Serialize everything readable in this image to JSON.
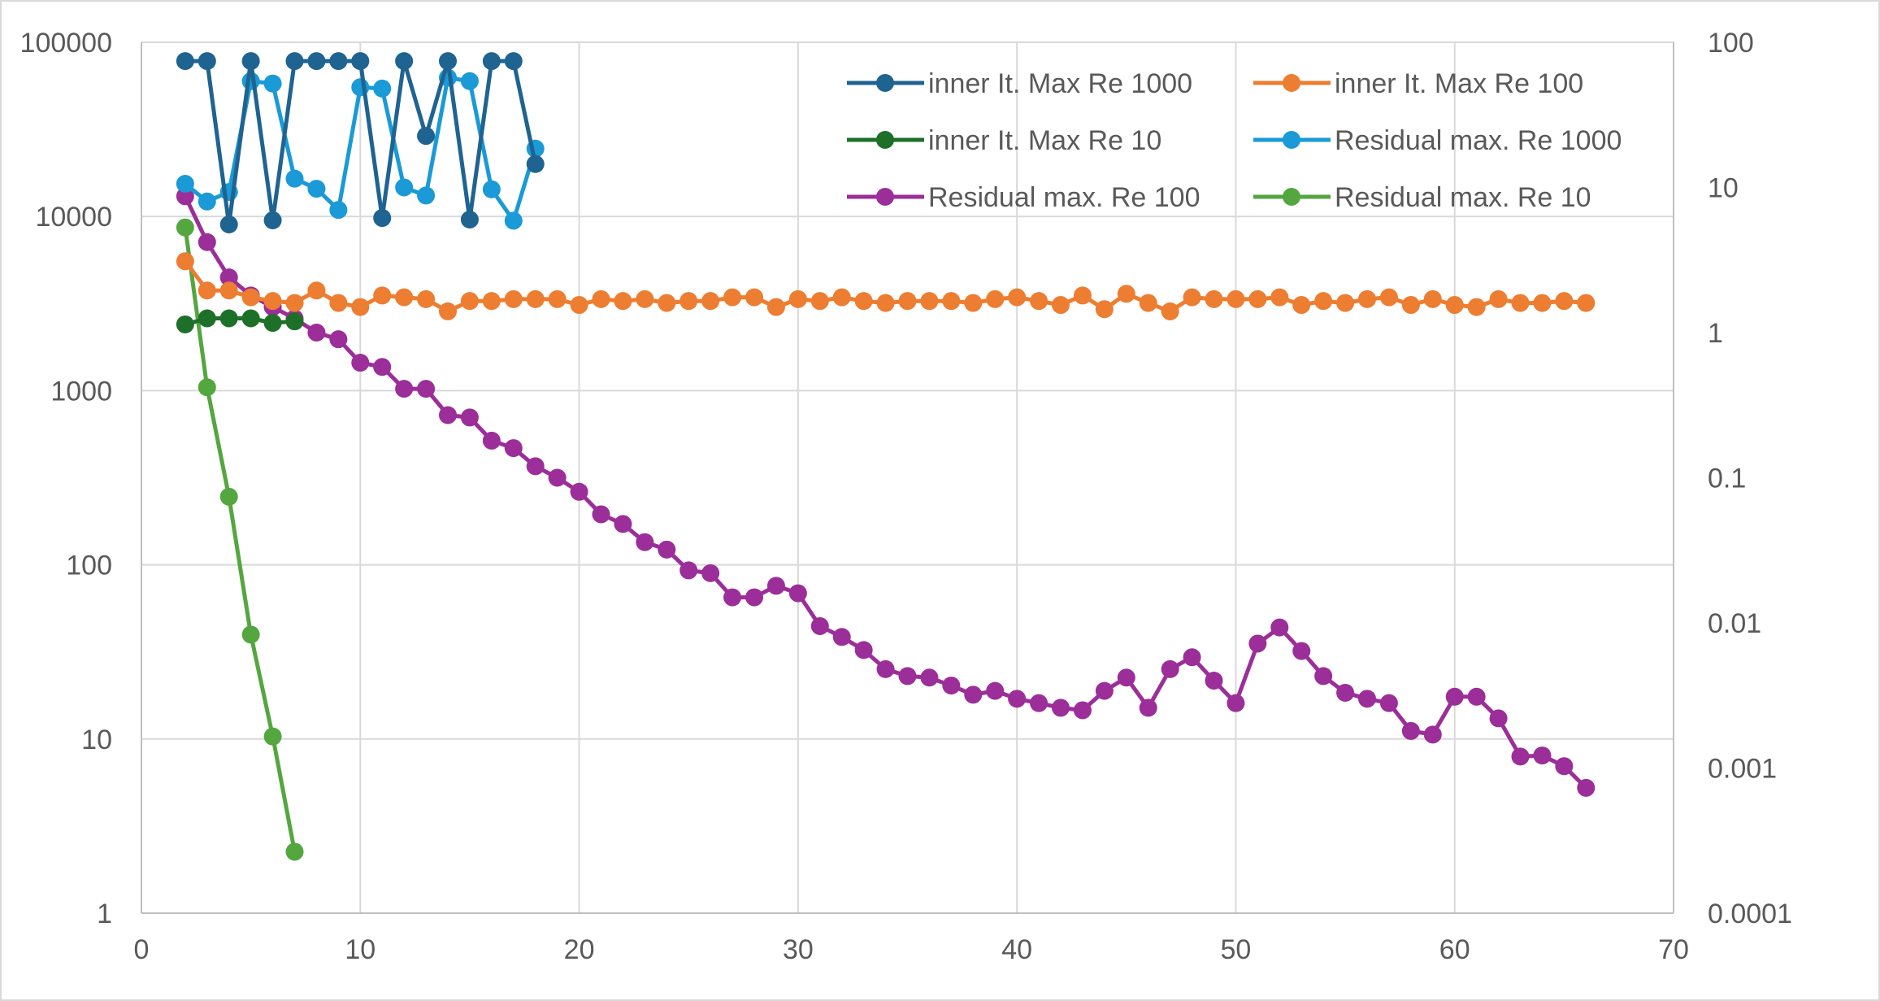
{
  "chart_data": {
    "type": "line",
    "title": "",
    "xlabel": "",
    "ylabel": "",
    "y2label": "",
    "x_axis": {
      "min": 0,
      "max": 70,
      "ticks": [
        0,
        10,
        20,
        30,
        40,
        50,
        60,
        70
      ]
    },
    "y_axis_left": {
      "scale": "log",
      "min": 1,
      "max": 100000,
      "ticks": [
        1,
        10,
        100,
        1000,
        10000,
        100000
      ],
      "tick_labels": [
        "1",
        "10",
        "100",
        "1000",
        "10000",
        "100000"
      ]
    },
    "y_axis_right": {
      "scale": "log",
      "min": 0.0001,
      "max": 100,
      "ticks": [
        0.0001,
        0.001,
        0.01,
        0.1,
        1,
        10,
        100
      ],
      "tick_labels": [
        "0.0001",
        "0.001",
        "0.01",
        "0.1",
        "1",
        "10",
        "100"
      ]
    },
    "grid": true,
    "legend_position": "top-right",
    "series": [
      {
        "name": "inner It. Max Re 1000",
        "axis": "left",
        "color": "#1f6391",
        "x": [
          2,
          3,
          4,
          5,
          6,
          7,
          8,
          9,
          10,
          11,
          12,
          13,
          14,
          15,
          16,
          17,
          18
        ],
        "values": [
          78000,
          78000,
          9000,
          78000,
          9500,
          78000,
          78000,
          78000,
          78000,
          9800,
          78000,
          29000,
          78000,
          9600,
          78000,
          78000,
          20000
        ]
      },
      {
        "name": "inner It. Max Re 100",
        "axis": "right",
        "color": "#ed7d31",
        "x": [
          2,
          3,
          4,
          5,
          6,
          7,
          8,
          9,
          10,
          11,
          12,
          13,
          14,
          15,
          16,
          17,
          18,
          19,
          20,
          21,
          22,
          23,
          24,
          25,
          26,
          27,
          28,
          29,
          30,
          31,
          32,
          33,
          34,
          35,
          36,
          37,
          38,
          39,
          40,
          41,
          42,
          43,
          44,
          45,
          46,
          47,
          48,
          49,
          50,
          51,
          52,
          53,
          54,
          55,
          56,
          57,
          58,
          59,
          60,
          61,
          62,
          63,
          64,
          65,
          66
        ],
        "values": [
          3.1,
          1.95,
          1.95,
          1.75,
          1.65,
          1.6,
          1.95,
          1.6,
          1.5,
          1.8,
          1.75,
          1.7,
          1.4,
          1.65,
          1.65,
          1.7,
          1.7,
          1.7,
          1.55,
          1.7,
          1.65,
          1.7,
          1.6,
          1.65,
          1.65,
          1.75,
          1.75,
          1.5,
          1.7,
          1.65,
          1.75,
          1.65,
          1.6,
          1.65,
          1.65,
          1.65,
          1.6,
          1.7,
          1.75,
          1.65,
          1.55,
          1.8,
          1.45,
          1.85,
          1.6,
          1.4,
          1.75,
          1.7,
          1.7,
          1.7,
          1.75,
          1.55,
          1.65,
          1.6,
          1.7,
          1.75,
          1.55,
          1.7,
          1.55,
          1.5,
          1.7,
          1.6,
          1.6,
          1.65,
          1.6
        ]
      },
      {
        "name": "inner It. Max Re 10",
        "axis": "left",
        "color": "#1e7029",
        "x": [
          2,
          3,
          4,
          5,
          6,
          7
        ],
        "values": [
          2400,
          2600,
          2600,
          2600,
          2450,
          2500
        ]
      },
      {
        "name": "Residual max. Re 1000",
        "axis": "right",
        "color": "#1a9ad6",
        "x": [
          2,
          3,
          4,
          5,
          6,
          7,
          8,
          9,
          10,
          11,
          12,
          13,
          14,
          15,
          16,
          17,
          18
        ],
        "values": [
          10.6,
          8.0,
          9.3,
          54,
          52,
          11.5,
          9.8,
          7.0,
          49,
          48,
          10.0,
          8.8,
          57,
          54,
          9.7,
          5.9,
          18.5
        ]
      },
      {
        "name": "Residual max. Re 100",
        "axis": "right",
        "color": "#9b2e98",
        "x": [
          2,
          3,
          4,
          5,
          6,
          7,
          8,
          9,
          10,
          11,
          12,
          13,
          14,
          15,
          16,
          17,
          18,
          19,
          20,
          21,
          22,
          23,
          24,
          25,
          26,
          27,
          28,
          29,
          30,
          31,
          32,
          33,
          34,
          35,
          36,
          37,
          38,
          39,
          40,
          41,
          42,
          43,
          44,
          45,
          46,
          47,
          48,
          49,
          50,
          51,
          52,
          53,
          54,
          55,
          56,
          57,
          58,
          59,
          60,
          61,
          62,
          63,
          64,
          65,
          66
        ],
        "values": [
          8.7,
          4.2,
          2.4,
          1.8,
          1.5,
          1.25,
          1.0,
          0.9,
          0.62,
          0.58,
          0.41,
          0.41,
          0.27,
          0.26,
          0.18,
          0.16,
          0.12,
          0.1,
          0.08,
          0.056,
          0.048,
          0.036,
          0.032,
          0.023,
          0.022,
          0.015,
          0.015,
          0.018,
          0.016,
          0.0095,
          0.008,
          0.0065,
          0.0048,
          0.0043,
          0.0042,
          0.0037,
          0.0032,
          0.0034,
          0.003,
          0.0028,
          0.0026,
          0.0025,
          0.0034,
          0.0042,
          0.0026,
          0.0048,
          0.0058,
          0.004,
          0.0028,
          0.0072,
          0.0093,
          0.0064,
          0.0043,
          0.0033,
          0.003,
          0.0028,
          0.0018,
          0.0017,
          0.0031,
          0.0031,
          0.0022,
          0.0012,
          0.00122,
          0.00103,
          0.00073
        ]
      },
      {
        "name": "Residual max. Re 10",
        "axis": "right",
        "color": "#54a63f",
        "x": [
          2,
          3,
          4,
          5,
          6,
          7
        ],
        "values": [
          5.3,
          0.42,
          0.074,
          0.0083,
          0.00165,
          0.000265
        ]
      }
    ]
  }
}
